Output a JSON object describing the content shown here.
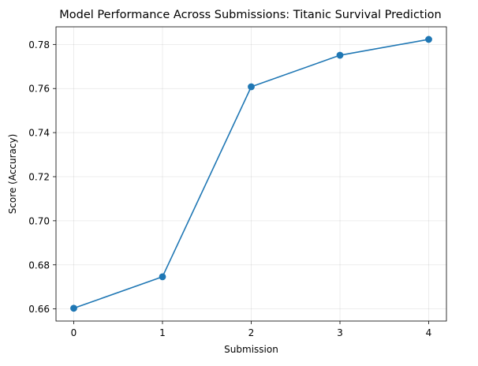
{
  "chart_data": {
    "type": "line",
    "title": "Model Performance Across Submissions: Titanic Survival Prediction",
    "xlabel": "Submission",
    "ylabel": "Score (Accuracy)",
    "x": [
      0,
      1,
      2,
      3,
      4
    ],
    "x_ticks": [
      "0",
      "1",
      "2",
      "3",
      "4"
    ],
    "xlim": [
      -0.2,
      4.2
    ],
    "y_ticks": [
      "0.66",
      "0.68",
      "0.70",
      "0.72",
      "0.74",
      "0.76",
      "0.78"
    ],
    "ylim": [
      0.6545,
      0.788
    ],
    "series": [
      {
        "values": [
          0.6603,
          0.6746,
          0.7608,
          0.7751,
          0.7823
        ],
        "color": "#1f77b4",
        "marker": "circle"
      }
    ],
    "grid": true,
    "legend": "none"
  }
}
